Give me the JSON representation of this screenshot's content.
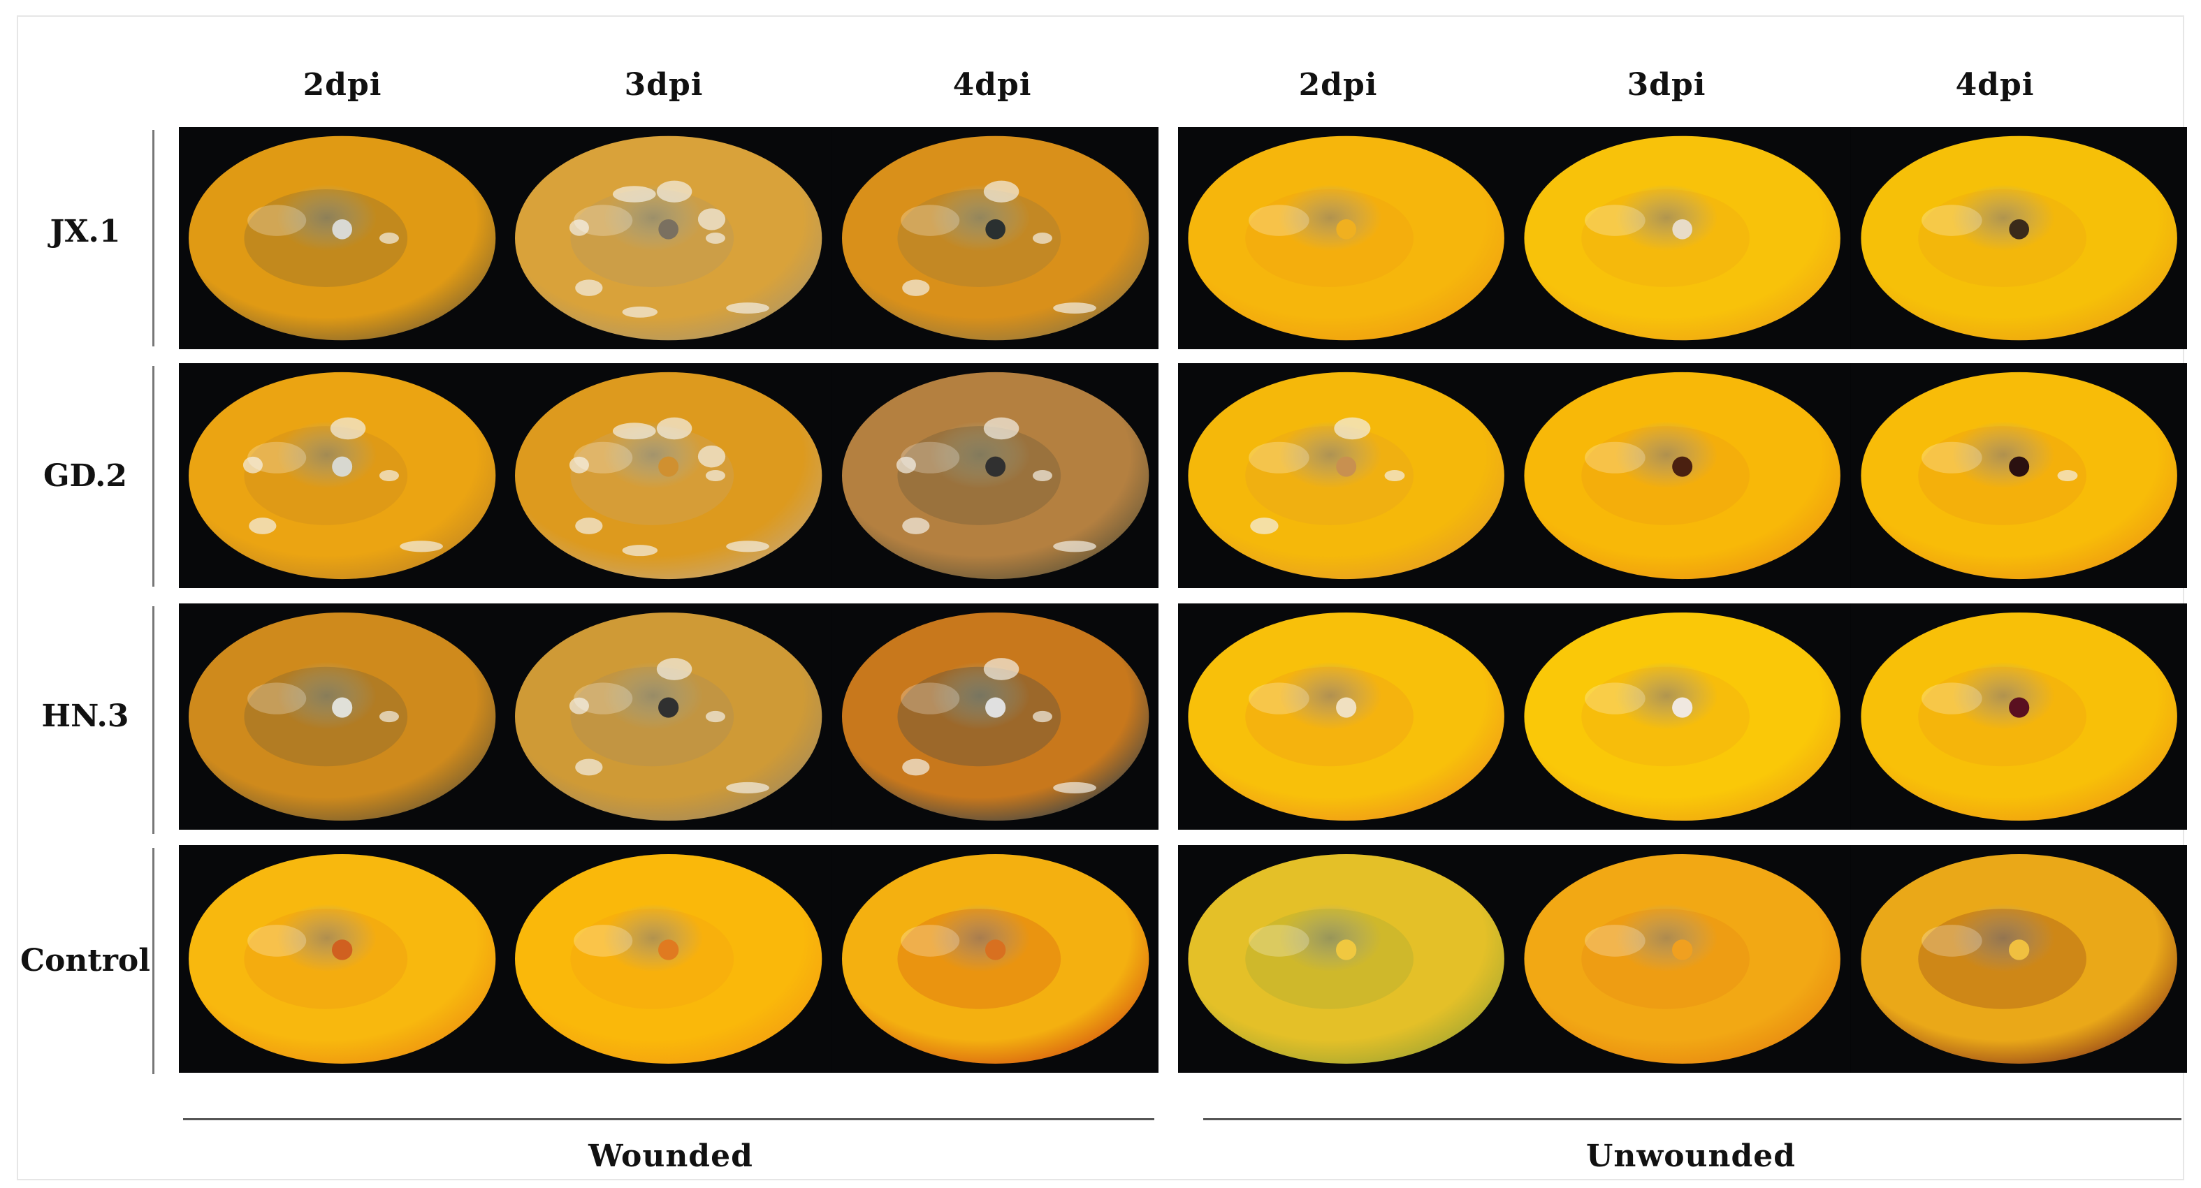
{
  "columns": {
    "wounded": [
      "2dpi",
      "3dpi",
      "4dpi"
    ],
    "unwounded": [
      "2dpi",
      "3dpi",
      "4dpi"
    ]
  },
  "rows": [
    "JX.1",
    "GD.2",
    "HN.3",
    "Control"
  ],
  "groups": {
    "wounded": "Wounded",
    "unwounded": "Unwounded"
  },
  "photos": [
    {
      "row": "JX.1",
      "group": "wounded",
      "cells": [
        {
          "dpi": "2dpi",
          "base": "#e09a14",
          "decay": "#8a6a2e",
          "mold": 0.1,
          "spot": "#d9d9d4"
        },
        {
          "dpi": "3dpi",
          "base": "#d9a23a",
          "decay": "#b49860",
          "mold": 0.55,
          "spot": "#7a7060"
        },
        {
          "dpi": "4dpi",
          "base": "#d9901a",
          "decay": "#9a7a3a",
          "mold": 0.3,
          "spot": "#2a3030"
        }
      ]
    },
    {
      "row": "JX.1",
      "group": "unwounded",
      "cells": [
        {
          "dpi": "2dpi",
          "base": "#f6b60c",
          "decay": "#f0a010",
          "mold": 0.0,
          "spot": "#f0b020"
        },
        {
          "dpi": "3dpi",
          "base": "#f8c20a",
          "decay": "#f0a812",
          "mold": 0.0,
          "spot": "#e8dcc8"
        },
        {
          "dpi": "4dpi",
          "base": "#f6c008",
          "decay": "#eea610",
          "mold": 0.0,
          "spot": "#3a2a1a"
        }
      ]
    },
    {
      "row": "GD.2",
      "group": "wounded",
      "cells": [
        {
          "dpi": "2dpi",
          "base": "#eba412",
          "decay": "#c88a20",
          "mold": 0.35,
          "spot": "#d8d8d0"
        },
        {
          "dpi": "3dpi",
          "base": "#dd9a1e",
          "decay": "#c9a468",
          "mold": 0.6,
          "spot": "#d09030"
        },
        {
          "dpi": "4dpi",
          "base": "#b48040",
          "decay": "#6a5a3a",
          "mold": 0.35,
          "spot": "#303030"
        }
      ]
    },
    {
      "row": "GD.2",
      "group": "unwounded",
      "cells": [
        {
          "dpi": "2dpi",
          "base": "#f5b80a",
          "decay": "#e8a020",
          "mold": 0.2,
          "spot": "#c89050"
        },
        {
          "dpi": "3dpi",
          "base": "#f8b808",
          "decay": "#ee9a10",
          "mold": 0.0,
          "spot": "#4a2010"
        },
        {
          "dpi": "4dpi",
          "base": "#f8bc08",
          "decay": "#ee9c10",
          "mold": 0.05,
          "spot": "#2a1010"
        }
      ]
    },
    {
      "row": "HN.3",
      "group": "wounded",
      "cells": [
        {
          "dpi": "2dpi",
          "base": "#cf8a1c",
          "decay": "#7a6030",
          "mold": 0.1,
          "spot": "#e0e0d8"
        },
        {
          "dpi": "3dpi",
          "base": "#cf9a36",
          "decay": "#a88c58",
          "mold": 0.35,
          "spot": "#303030"
        },
        {
          "dpi": "4dpi",
          "base": "#c8781c",
          "decay": "#4a4a44",
          "mold": 0.3,
          "spot": "#e0e0e0"
        }
      ]
    },
    {
      "row": "HN.3",
      "group": "unwounded",
      "cells": [
        {
          "dpi": "2dpi",
          "base": "#f8c00a",
          "decay": "#f09a18",
          "mold": 0.0,
          "spot": "#f0e0c0"
        },
        {
          "dpi": "3dpi",
          "base": "#fac808",
          "decay": "#f0a810",
          "mold": 0.0,
          "spot": "#f0e8e0"
        },
        {
          "dpi": "4dpi",
          "base": "#f8c008",
          "decay": "#f0a010",
          "mold": 0.0,
          "spot": "#5a1020"
        }
      ]
    },
    {
      "row": "Control",
      "group": "wounded",
      "cells": [
        {
          "dpi": "2dpi",
          "base": "#f8b80e",
          "decay": "#ee9410",
          "mold": 0.0,
          "spot": "#d06020"
        },
        {
          "dpi": "3dpi",
          "base": "#fab80a",
          "decay": "#f4a010",
          "mold": 0.0,
          "spot": "#e07a20"
        },
        {
          "dpi": "4dpi",
          "base": "#f4b010",
          "decay": "#d86010",
          "mold": 0.0,
          "spot": "#d87020"
        }
      ]
    },
    {
      "row": "Control",
      "group": "unwounded",
      "cells": [
        {
          "dpi": "2dpi",
          "base": "#e4c028",
          "decay": "#a8a830",
          "mold": 0.0,
          "spot": "#f0c840"
        },
        {
          "dpi": "3dpi",
          "base": "#f2a814",
          "decay": "#e88a10",
          "mold": 0.0,
          "spot": "#f0a020"
        },
        {
          "dpi": "4dpi",
          "base": "#eaa818",
          "decay": "#9a4a18",
          "mold": 0.0,
          "spot": "#f0c040"
        }
      ]
    }
  ]
}
